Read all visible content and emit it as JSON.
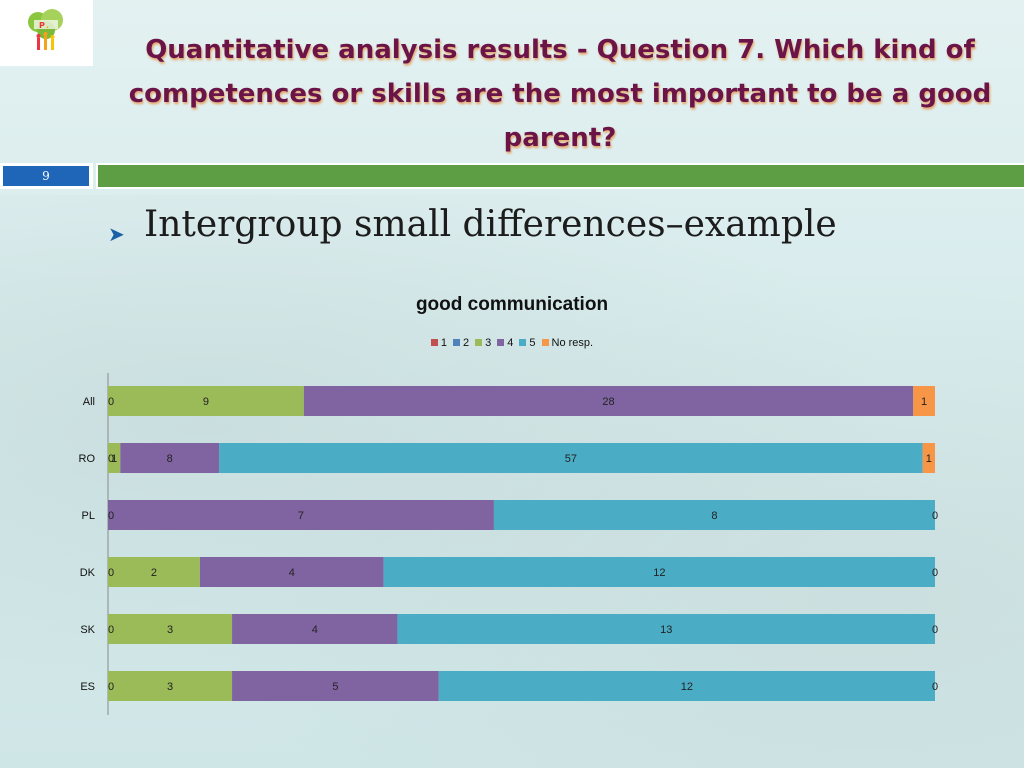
{
  "slide": {
    "title": "Quantitative analysis results - Question 7. Which kind of competences or skills are the most important to be a good parent?",
    "number": "9",
    "bullet": "Intergroup small differences–example"
  },
  "colors": {
    "title": "#6a1448",
    "accent_bar": "#5d9e45",
    "slide_number_bg": "#1f66b8"
  },
  "chart_data": {
    "type": "bar",
    "orientation": "horizontal",
    "stacked": "100%",
    "title": "good communication",
    "legend_position": "top",
    "categories": [
      "All",
      "RO",
      "PL",
      "DK",
      "SK",
      "ES"
    ],
    "series": [
      {
        "name": "1",
        "color": "#c0504d",
        "values": [
          0,
          0,
          0,
          0,
          0,
          0
        ]
      },
      {
        "name": "2",
        "color": "#4f81bd",
        "values": [
          0,
          0,
          0,
          0,
          0,
          0
        ]
      },
      {
        "name": "3",
        "color": "#9bbb59",
        "values": [
          9,
          1,
          0,
          2,
          3,
          3
        ]
      },
      {
        "name": "4",
        "color": "#8064a2",
        "values": [
          28,
          8,
          7,
          4,
          4,
          5
        ]
      },
      {
        "name": "5",
        "color": "#4bacc6",
        "values": [
          0,
          57,
          8,
          12,
          13,
          12
        ]
      },
      {
        "name": "No resp.",
        "color": "#f79646",
        "values": [
          1,
          1,
          0,
          0,
          0,
          0
        ]
      }
    ],
    "data_labels": [
      [
        "0",
        "9",
        "28",
        "1"
      ],
      [
        "0",
        "1",
        "8",
        "57",
        "1"
      ],
      [
        "0",
        "7",
        "8",
        "0"
      ],
      [
        "0",
        "2",
        "4",
        "12",
        "0"
      ],
      [
        "0",
        "3",
        "4",
        "13",
        "0"
      ],
      [
        "0",
        "3",
        "5",
        "12",
        "0"
      ]
    ]
  }
}
